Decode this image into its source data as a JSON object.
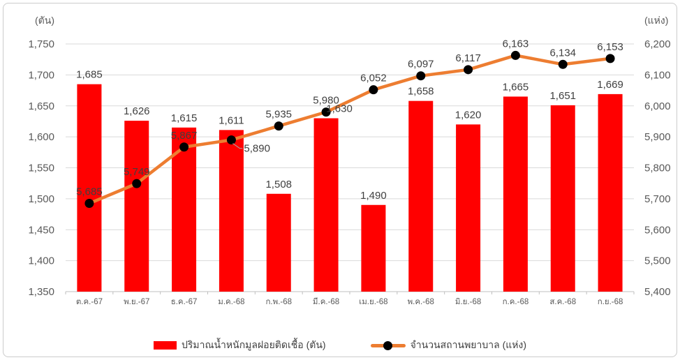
{
  "chart_data": {
    "type": "combo",
    "categories": [
      "ต.ค.-67",
      "พ.ย.-67",
      "ธ.ค.-67",
      "ม.ค.-68",
      "ก.พ.-68",
      "มี.ค.-68",
      "เม.ย.-68",
      "พ.ค.-68",
      "มิ.ย.-68",
      "ก.ค.-68",
      "ส.ค.-68",
      "ก.ย.-68"
    ],
    "series": [
      {
        "name": "ปริมาณน้ำหนักมูลฝอยติดเชื้อ (ตัน)",
        "type": "bar",
        "axis": "left",
        "color": "#FF0000",
        "values": [
          1685,
          1626,
          1615,
          1611,
          1508,
          1630,
          1490,
          1658,
          1620,
          1665,
          1651,
          1669
        ],
        "label_dx": [
          0,
          0,
          0,
          0,
          0,
          19,
          0,
          0,
          0,
          0,
          0,
          0
        ]
      },
      {
        "name": "จำนวนสถานพยาบาล (แห่ง)",
        "type": "line",
        "axis": "right",
        "color": "#ED7D31",
        "marker_color": "#000000",
        "values": [
          5685,
          5749,
          5867,
          5890,
          5935,
          5980,
          6052,
          6097,
          6117,
          6163,
          6134,
          6153
        ],
        "label_positions": [
          "above",
          "above",
          "above",
          "right-leader",
          "above",
          "above",
          "above",
          "above",
          "above",
          "above",
          "above",
          "above"
        ]
      }
    ],
    "left_axis": {
      "title": "(ตัน)",
      "min": 1350,
      "max": 1750,
      "step": 50,
      "ticks": [
        1350,
        1400,
        1450,
        1500,
        1550,
        1600,
        1650,
        1700,
        1750
      ]
    },
    "right_axis": {
      "title": "(แห่ง)",
      "min": 5400,
      "max": 6200,
      "step": 100,
      "ticks": [
        5400,
        5500,
        5600,
        5700,
        5800,
        5900,
        6000,
        6100,
        6200
      ]
    },
    "grid": true,
    "legend_position": "bottom"
  },
  "colors": {
    "background": "#FFFFFF",
    "border": "#CBCBCB",
    "grid": "#D9D9D9",
    "axis_line": "#BFBFBF",
    "tick_label": "#595959",
    "data_label": "#3F3F3F",
    "leader_line": "#A6A6A6"
  }
}
